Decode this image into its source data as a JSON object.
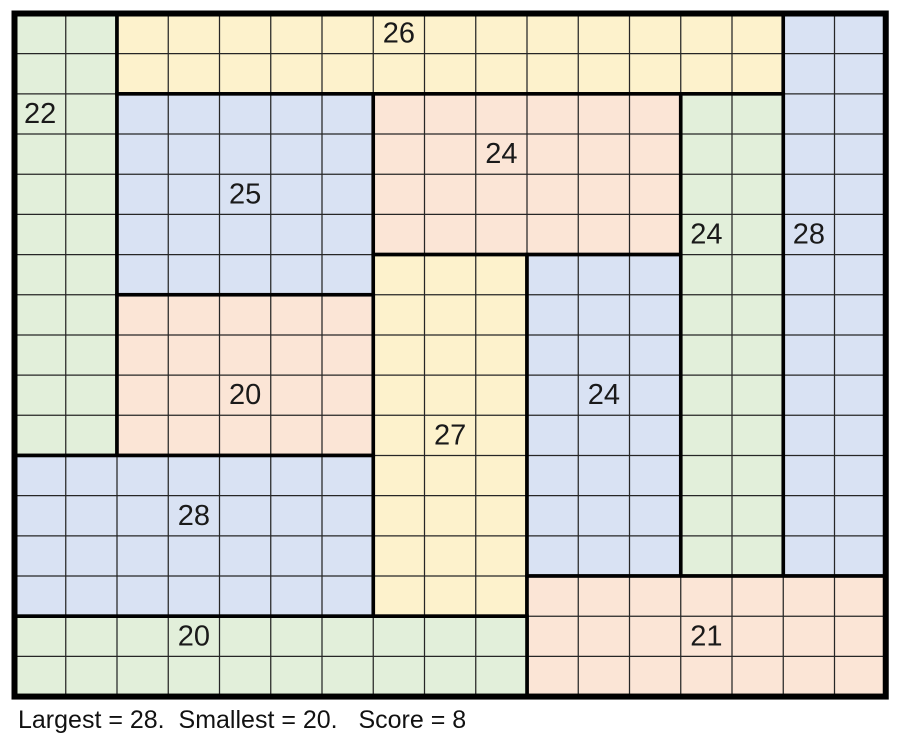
{
  "puzzle": {
    "grid": {
      "cols": 17,
      "rows": 17
    },
    "palette": {
      "green": "#e2efda",
      "yellow": "#fdf2cc",
      "blue": "#d9e2f3",
      "peach": "#fbe5d6",
      "thin_line": "#262626",
      "thick_border": "#000000",
      "label_text": "#1a1a1a",
      "background": "#ffffff"
    },
    "regions": [
      {
        "label": "22",
        "color": "green",
        "col": 0,
        "row": 0,
        "w": 2,
        "h": 11,
        "label_cell": {
          "col": 0,
          "row": 2
        }
      },
      {
        "label": "26",
        "color": "yellow",
        "col": 2,
        "row": 0,
        "w": 13,
        "h": 2,
        "label_cell": {
          "col": 7,
          "row": 0
        }
      },
      {
        "label": "28",
        "color": "blue",
        "col": 15,
        "row": 0,
        "w": 2,
        "h": 14,
        "label_cell": {
          "col": 15,
          "row": 5
        }
      },
      {
        "label": "25",
        "color": "blue",
        "col": 2,
        "row": 2,
        "w": 5,
        "h": 5,
        "label_cell": {
          "col": 4,
          "row": 4
        }
      },
      {
        "label": "24",
        "color": "peach",
        "col": 7,
        "row": 2,
        "w": 6,
        "h": 4,
        "label_cell": {
          "col": 9,
          "row": 3
        }
      },
      {
        "label": "24",
        "color": "green",
        "col": 13,
        "row": 2,
        "w": 2,
        "h": 12,
        "label_cell": {
          "col": 13,
          "row": 5
        }
      },
      {
        "label": "27",
        "color": "yellow",
        "col": 7,
        "row": 6,
        "w": 3,
        "h": 9,
        "label_cell": {
          "col": 8,
          "row": 10
        }
      },
      {
        "label": "24",
        "color": "blue",
        "col": 10,
        "row": 6,
        "w": 3,
        "h": 8,
        "label_cell": {
          "col": 11,
          "row": 9
        }
      },
      {
        "label": "20",
        "color": "peach",
        "col": 2,
        "row": 7,
        "w": 5,
        "h": 4,
        "label_cell": {
          "col": 4,
          "row": 9
        }
      },
      {
        "label": "28",
        "color": "blue",
        "col": 0,
        "row": 11,
        "w": 7,
        "h": 4,
        "label_cell": {
          "col": 3,
          "row": 12
        }
      },
      {
        "label": "21",
        "color": "peach",
        "col": 10,
        "row": 14,
        "w": 7,
        "h": 3,
        "label_cell": {
          "col": 13,
          "row": 15
        }
      },
      {
        "label": "20",
        "color": "green",
        "col": 0,
        "row": 15,
        "w": 10,
        "h": 2,
        "label_cell": {
          "col": 3,
          "row": 15
        }
      }
    ],
    "caption": {
      "text": "Largest = 28.  Smallest = 20.   Score = 8",
      "largest": 28,
      "smallest": 20,
      "score": 8
    }
  }
}
